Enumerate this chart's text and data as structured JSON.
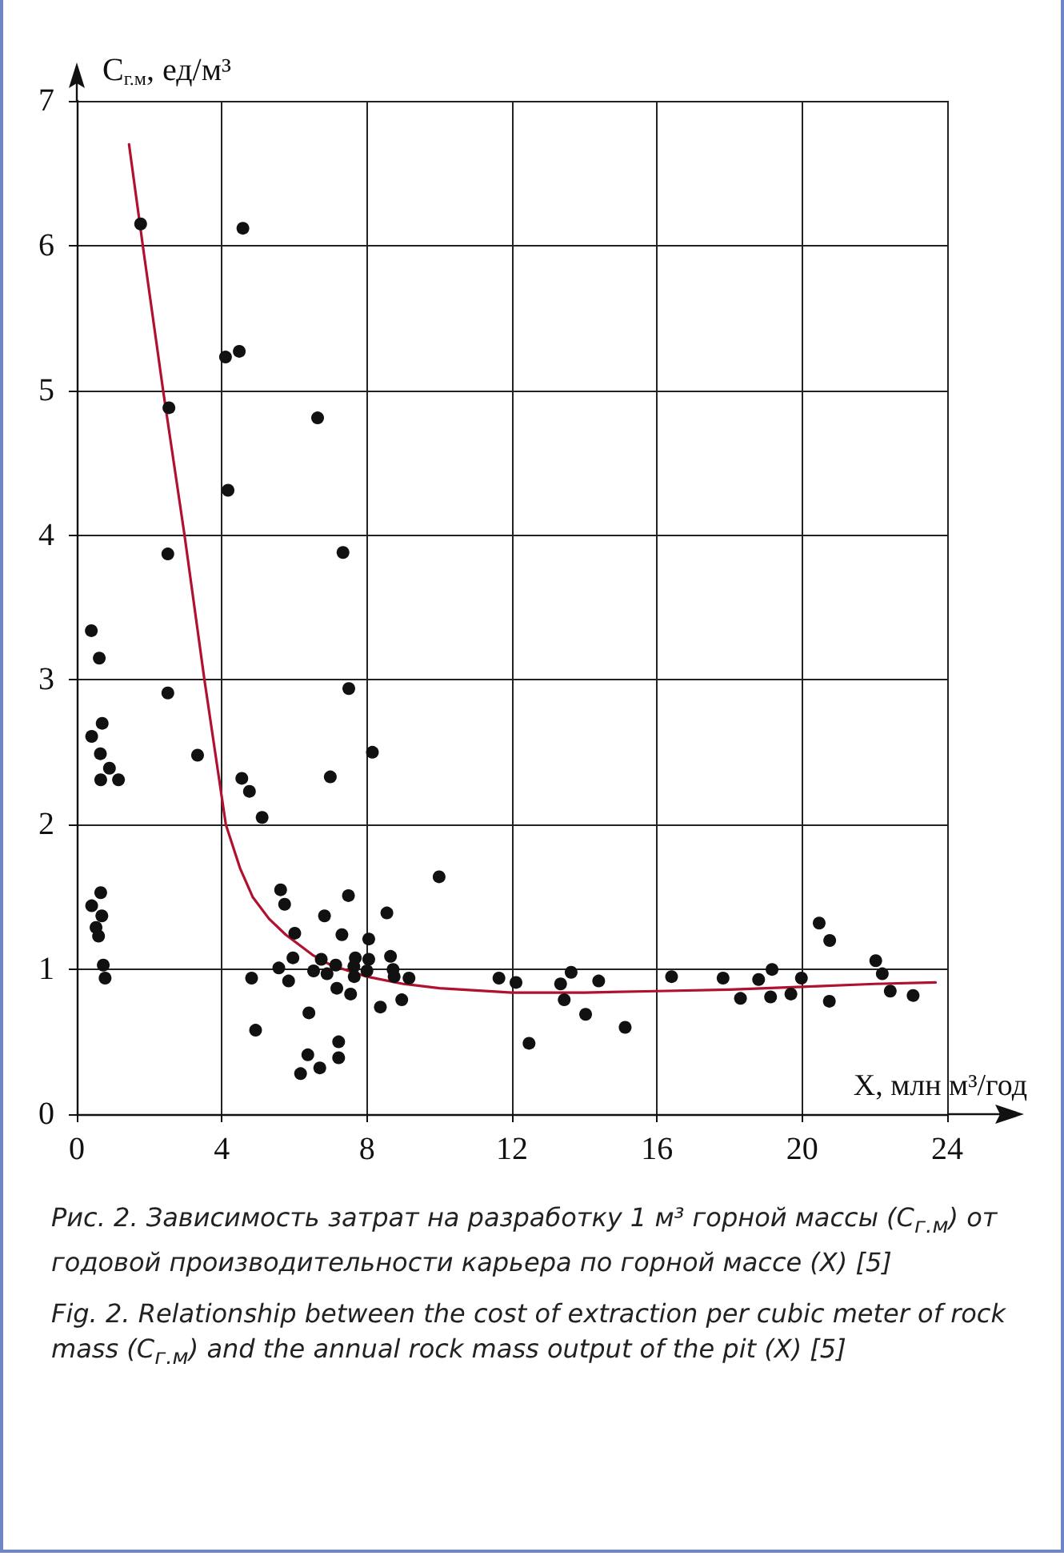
{
  "chart_data": {
    "type": "scatter",
    "xlabel": "X, млн м³/год",
    "ylabel": "C$_{г.м}$, ед/м³",
    "annotations": [
      "Рис. 2. Зависимость затрат на разработку 1 м³ горной массы (C$_{г.м}$) от годовой производительности карьера по горной массе (X) [5]",
      "Fig. 2. Relationship between the cost of extraction per cubic meter of rock mass (C$_{г.м}$) and the annual rock mass output of the pit (X) [5]"
    ],
    "xlim": [
      0,
      24
    ],
    "xticks": [
      0,
      4,
      8,
      12,
      16,
      20,
      24
    ],
    "ylim": [
      0,
      7
    ],
    "yticks": [
      0,
      1,
      2,
      3,
      4,
      5,
      6,
      7
    ],
    "grid": true,
    "series": [
      {
        "marker": "circle",
        "color": "#111111",
        "x": [
          1.76,
          4.58,
          4.1,
          4.48,
          2.54,
          6.64,
          4.17,
          2.51,
          7.34,
          0.4,
          0.62,
          2.51,
          7.5,
          0.7,
          0.41,
          0.65,
          3.33,
          8.15,
          0.9,
          0.66,
          1.15,
          4.55,
          4.76,
          6.99,
          5.11,
          9.99,
          5.62,
          5.73,
          0.66,
          0.41,
          0.69,
          0.53,
          0.6,
          7.49,
          6.83,
          8.55,
          6.01,
          7.31,
          8.05,
          5.96,
          6.74,
          7.68,
          8.05,
          8.65,
          0.73,
          5.57,
          6.53,
          7.14,
          7.64,
          8.0,
          8.72,
          0.78,
          4.82,
          5.84,
          6.9,
          7.65,
          8.75,
          9.16,
          11.64,
          12.11,
          7.17,
          7.55,
          8.37,
          8.96,
          6.4,
          4.93,
          12.47,
          7.22,
          6.37,
          7.22,
          6.7,
          6.17,
          13.34,
          13.63,
          13.44,
          14.03,
          14.39,
          15.12,
          16.4,
          17.82,
          18.3,
          18.8,
          19.17,
          19.13,
          19.69,
          19.98,
          20.47,
          20.76,
          20.75,
          22.03,
          22.21,
          22.43,
          23.06
        ],
        "values": [
          6.15,
          6.12,
          5.23,
          5.27,
          4.88,
          4.81,
          4.31,
          3.87,
          3.88,
          3.34,
          3.15,
          2.91,
          2.94,
          2.7,
          2.61,
          2.49,
          2.48,
          2.5,
          2.39,
          2.31,
          2.31,
          2.32,
          2.23,
          2.33,
          2.05,
          1.64,
          1.55,
          1.45,
          1.53,
          1.44,
          1.37,
          1.29,
          1.23,
          1.51,
          1.37,
          1.39,
          1.25,
          1.24,
          1.21,
          1.08,
          1.07,
          1.08,
          1.07,
          1.09,
          1.03,
          1.01,
          0.99,
          1.03,
          1.02,
          0.99,
          1.0,
          0.94,
          0.94,
          0.92,
          0.97,
          0.95,
          0.95,
          0.94,
          0.94,
          0.91,
          0.87,
          0.83,
          0.74,
          0.79,
          0.7,
          0.58,
          0.49,
          0.5,
          0.41,
          0.39,
          0.32,
          0.28,
          0.9,
          0.98,
          0.79,
          0.69,
          0.92,
          0.6,
          0.95,
          0.94,
          0.8,
          0.93,
          1.0,
          0.81,
          0.83,
          0.94,
          1.32,
          1.2,
          0.78,
          1.06,
          0.97,
          0.85,
          0.82
        ]
      },
      {
        "type": "line",
        "marker": "none",
        "line_style": "solid",
        "color": "#b0112e",
        "x": [
          1.44,
          1.82,
          2.38,
          2.97,
          3.52,
          4.11,
          4.5,
          4.85,
          5.3,
          5.76,
          6.5,
          7,
          8,
          9,
          10,
          12,
          14,
          16,
          18,
          20,
          22,
          23.68
        ],
        "values": [
          6.7,
          6.0,
          5.0,
          4.0,
          3.0,
          2.0,
          1.7,
          1.5,
          1.35,
          1.24,
          1.1,
          1.03,
          0.95,
          0.9,
          0.87,
          0.84,
          0.84,
          0.85,
          0.86,
          0.88,
          0.9,
          0.91
        ]
      }
    ]
  }
}
